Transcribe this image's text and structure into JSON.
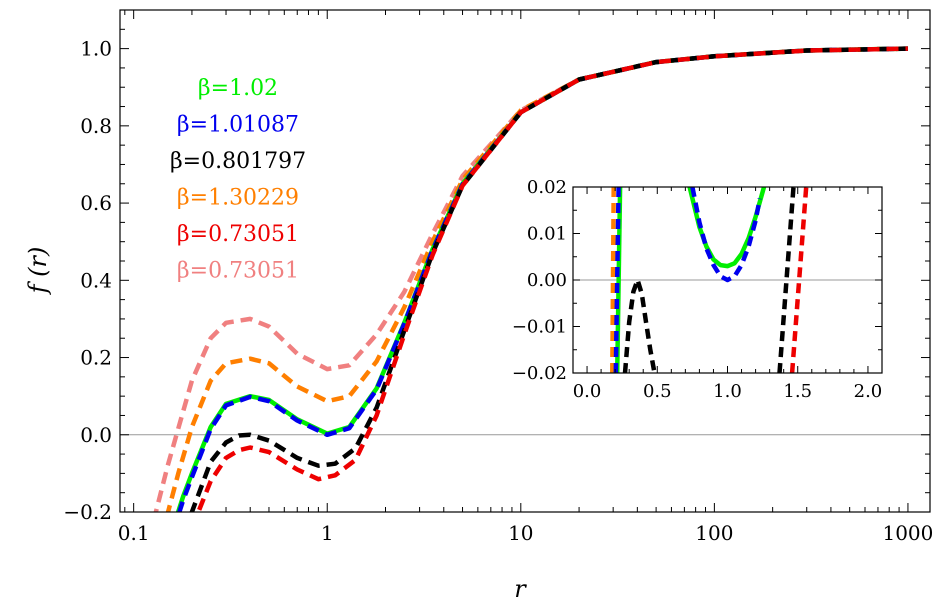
{
  "chart_data": {
    "type": "line",
    "xlabel": "r",
    "ylabel": "f (r)",
    "x_scale": "log",
    "xlim": [
      0.085,
      1300
    ],
    "ylim": [
      -0.2,
      1.1
    ],
    "x_ticks": [
      {
        "value": 0.1,
        "label": "0.1"
      },
      {
        "value": 1,
        "label": "1"
      },
      {
        "value": 10,
        "label": "10"
      },
      {
        "value": 100,
        "label": "100"
      },
      {
        "value": 1000,
        "label": "1000"
      }
    ],
    "y_ticks": [
      {
        "value": -0.2,
        "label": "−0.2"
      },
      {
        "value": 0.0,
        "label": "0.0"
      },
      {
        "value": 0.2,
        "label": "0.2"
      },
      {
        "value": 0.4,
        "label": "0.4"
      },
      {
        "value": 0.6,
        "label": "0.6"
      },
      {
        "value": 0.8,
        "label": "0.8"
      },
      {
        "value": 1.0,
        "label": "1.0"
      }
    ],
    "series": [
      {
        "name": "β=0.73051",
        "color": "#f08080",
        "style": "dashed",
        "x": [
          0.12,
          0.15,
          0.2,
          0.25,
          0.3,
          0.4,
          0.5,
          0.7,
          1.0,
          1.3,
          1.8,
          2.5,
          3.5,
          5,
          10,
          20,
          50,
          100,
          300,
          1000
        ],
        "y": [
          -0.27,
          -0.08,
          0.14,
          0.25,
          0.29,
          0.3,
          0.28,
          0.21,
          0.17,
          0.18,
          0.26,
          0.37,
          0.52,
          0.67,
          0.84,
          0.92,
          0.965,
          0.98,
          0.995,
          1.0
        ]
      },
      {
        "name": "β=1.30229",
        "color": "#ff7f00",
        "style": "dashed",
        "x": [
          0.14,
          0.17,
          0.2,
          0.25,
          0.3,
          0.4,
          0.5,
          0.7,
          1.0,
          1.3,
          1.8,
          2.5,
          3.5,
          5,
          10,
          20,
          50,
          100,
          300,
          1000
        ],
        "y": [
          -0.26,
          -0.1,
          0.02,
          0.14,
          0.185,
          0.197,
          0.185,
          0.125,
          0.087,
          0.1,
          0.19,
          0.33,
          0.5,
          0.66,
          0.84,
          0.92,
          0.965,
          0.98,
          0.995,
          1.0
        ]
      },
      {
        "name": "β=1.02",
        "color": "#00ee00",
        "style": "solid",
        "x": [
          0.16,
          0.18,
          0.2,
          0.25,
          0.3,
          0.4,
          0.5,
          0.7,
          1.0,
          1.3,
          1.8,
          2.5,
          3.5,
          5,
          10,
          20,
          50,
          100,
          300,
          1000
        ],
        "y": [
          -0.24,
          -0.16,
          -0.1,
          0.02,
          0.08,
          0.1,
          0.09,
          0.04,
          0.003,
          0.02,
          0.12,
          0.29,
          0.48,
          0.65,
          0.835,
          0.92,
          0.965,
          0.98,
          0.995,
          1.0
        ]
      },
      {
        "name": "β=1.01087",
        "color": "#0000ee",
        "style": "dashed",
        "x": [
          0.16,
          0.18,
          0.2,
          0.25,
          0.3,
          0.4,
          0.5,
          0.7,
          1.0,
          1.3,
          1.8,
          2.5,
          3.5,
          5,
          10,
          20,
          50,
          100,
          300,
          1000
        ],
        "y": [
          -0.25,
          -0.17,
          -0.11,
          0.015,
          0.076,
          0.098,
          0.087,
          0.037,
          0.0,
          0.017,
          0.117,
          0.288,
          0.478,
          0.648,
          0.835,
          0.92,
          0.965,
          0.98,
          0.995,
          1.0
        ]
      },
      {
        "name": "β=0.801797",
        "color": "#000000",
        "style": "dashed",
        "x": [
          0.18,
          0.2,
          0.25,
          0.3,
          0.35,
          0.4,
          0.5,
          0.7,
          0.9,
          1.1,
          1.4,
          1.8,
          2.5,
          3.5,
          5,
          10,
          20,
          50,
          100,
          300,
          1000
        ],
        "y": [
          -0.25,
          -0.2,
          -0.07,
          -0.02,
          -0.002,
          0.0,
          -0.015,
          -0.06,
          -0.08,
          -0.075,
          -0.035,
          0.07,
          0.27,
          0.47,
          0.645,
          0.835,
          0.92,
          0.965,
          0.98,
          0.995,
          1.0
        ]
      },
      {
        "name": "β=0.73051",
        "color": "#ee0000",
        "style": "dashed",
        "x": [
          0.2,
          0.22,
          0.25,
          0.3,
          0.35,
          0.4,
          0.5,
          0.7,
          0.9,
          1.1,
          1.4,
          1.8,
          2.5,
          3.5,
          5,
          10,
          20,
          50,
          100,
          300,
          1000
        ],
        "y": [
          -0.24,
          -0.19,
          -0.12,
          -0.06,
          -0.04,
          -0.033,
          -0.045,
          -0.09,
          -0.115,
          -0.105,
          -0.065,
          0.05,
          0.26,
          0.465,
          0.645,
          0.835,
          0.92,
          0.965,
          0.98,
          0.995,
          1.0
        ]
      }
    ],
    "legend": {
      "placement": "top-left",
      "entries": [
        {
          "label": "β=1.02",
          "color": "#00ee00"
        },
        {
          "label": "β=1.01087",
          "color": "#0000ee"
        },
        {
          "label": "β=0.801797",
          "color": "#000000"
        },
        {
          "label": "β=1.30229",
          "color": "#ff7f00"
        },
        {
          "label": "β=0.73051",
          "color": "#ee0000"
        },
        {
          "label": "β=0.73051",
          "color": "#f08080"
        }
      ]
    },
    "inset": {
      "x_scale": "linear",
      "xlim": [
        -0.1,
        2.1
      ],
      "ylim": [
        -0.02,
        0.02
      ],
      "x_ticks": [
        {
          "value": 0.0,
          "label": "0.0"
        },
        {
          "value": 0.5,
          "label": "0.5"
        },
        {
          "value": 1.0,
          "label": "1.0"
        },
        {
          "value": 1.5,
          "label": "1.5"
        },
        {
          "value": 2.0,
          "label": "2.0"
        }
      ],
      "y_ticks": [
        {
          "value": -0.02,
          "label": "−0.02"
        },
        {
          "value": -0.01,
          "label": "−0.01"
        },
        {
          "value": 0.0,
          "label": "0.00"
        },
        {
          "value": 0.01,
          "label": "0.01"
        },
        {
          "value": 0.02,
          "label": "0.02"
        }
      ],
      "series": [
        {
          "name": "β=1.30229",
          "color": "#ff7f00",
          "style": "dashed",
          "x": [
            0.18,
            0.19
          ],
          "y": [
            -0.02,
            0.02
          ]
        },
        {
          "name": "β=1.02",
          "color": "#00ee00",
          "style": "solid",
          "x": [
            0.215,
            0.235
          ],
          "y": [
            -0.02,
            0.02
          ]
        },
        {
          "name": "β=1.01087",
          "color": "#0000ee",
          "style": "dashed",
          "x": [
            0.205,
            0.225
          ],
          "y": [
            -0.02,
            0.02
          ]
        },
        {
          "name": "β=1.02",
          "color": "#00ee00",
          "style": "solid",
          "x": [
            0.73,
            0.8,
            0.85,
            0.9,
            0.95,
            1.0,
            1.05,
            1.1,
            1.15,
            1.2,
            1.26
          ],
          "y": [
            0.02,
            0.0114,
            0.0072,
            0.0044,
            0.0032,
            0.003,
            0.0036,
            0.0056,
            0.009,
            0.0136,
            0.02
          ]
        },
        {
          "name": "β=1.01087",
          "color": "#0000ee",
          "style": "dashed",
          "x": [
            0.75,
            0.8,
            0.85,
            0.9,
            0.95,
            1.0,
            1.05,
            1.1,
            1.15,
            1.2,
            1.23
          ],
          "y": [
            0.02,
            0.0124,
            0.0068,
            0.0032,
            0.0008,
            0.0,
            0.0008,
            0.0032,
            0.0072,
            0.0128,
            0.0175
          ]
        },
        {
          "name": "β=0.801797",
          "color": "#000000",
          "style": "dashed",
          "x": [
            0.27,
            0.3,
            0.33,
            0.36,
            0.39,
            0.42,
            0.45,
            0.48
          ],
          "y": [
            -0.02,
            -0.009,
            -0.0025,
            0.0,
            -0.003,
            -0.009,
            -0.015,
            -0.02
          ]
        },
        {
          "name": "β=0.801797",
          "color": "#000000",
          "style": "dashed",
          "x": [
            1.37,
            1.47
          ],
          "y": [
            -0.02,
            0.02
          ]
        },
        {
          "name": "β=0.73051",
          "color": "#ee0000",
          "style": "dashed",
          "x": [
            1.46,
            1.56
          ],
          "y": [
            -0.02,
            0.02
          ]
        }
      ]
    }
  }
}
